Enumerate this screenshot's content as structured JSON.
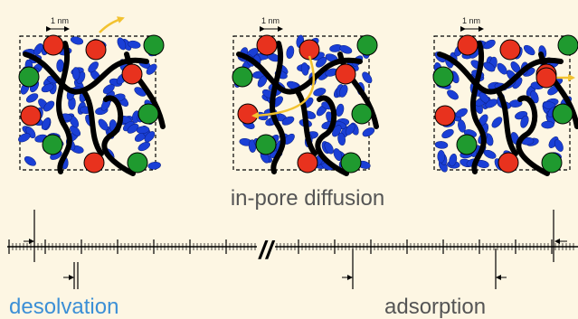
{
  "panels": [
    {
      "scale_label": "1 nm"
    },
    {
      "scale_label": "1 nm"
    },
    {
      "scale_label": "1 nm"
    }
  ],
  "labels": {
    "in_pore": "in-pore diffusion",
    "desolvation": "desolvation",
    "adsorption": "adsorption",
    "break_mark": "//"
  },
  "colors": {
    "background": "#fdf6e3",
    "solvent": "#1a3fd6",
    "cation": "#e8321e",
    "anion": "#1f9a2f",
    "carbon": "#000000",
    "arrow": "#f2c230",
    "desolvation_text": "#3b8fd6",
    "other_text": "#555555"
  }
}
